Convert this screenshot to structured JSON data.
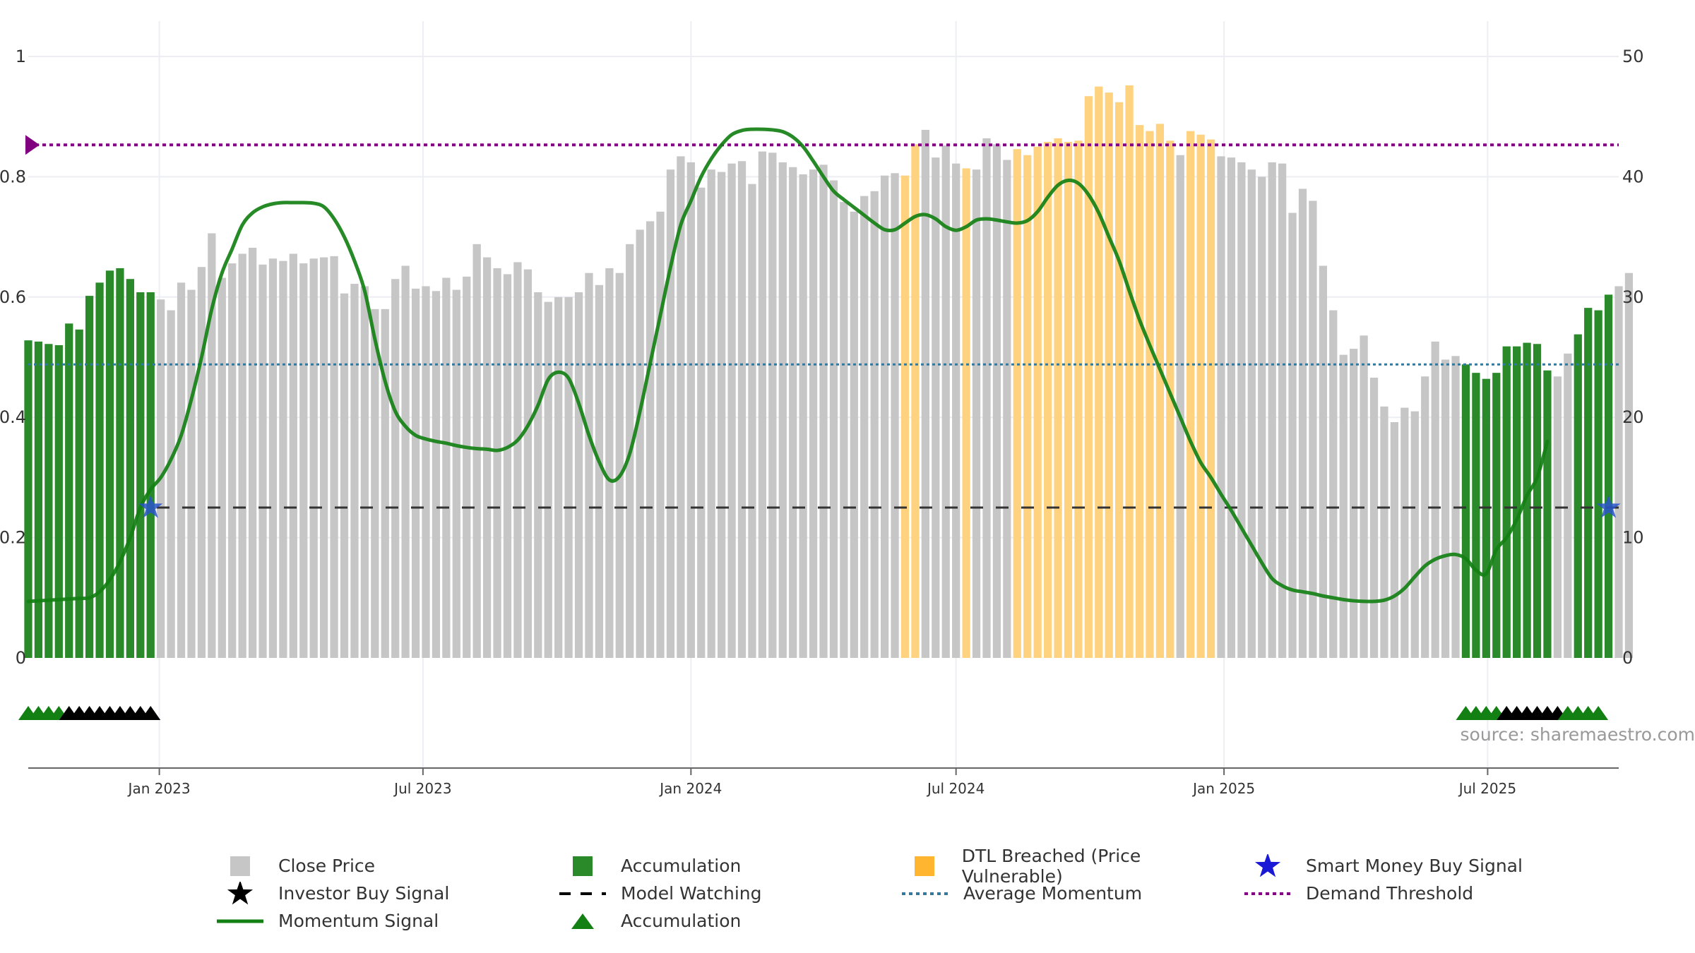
{
  "chart_data": {
    "type": "bar",
    "title": "",
    "source": "source: sharemaestro.com",
    "x_ticks": [
      "Jan 2023",
      "Jul 2023",
      "Jan 2024",
      "Jul 2024",
      "Jan 2025",
      "Jul 2025"
    ],
    "x_range": [
      "2022-10-03",
      "2025-09-29"
    ],
    "y_left": {
      "range": [
        0,
        1
      ],
      "ticks": [
        0,
        0.2,
        0.4,
        0.6,
        0.8,
        1
      ],
      "tick_labels": [
        "0",
        "0.2",
        "0.4",
        "0.6",
        "0.8",
        "1"
      ]
    },
    "y_right": {
      "range": [
        0,
        50
      ],
      "ticks": [
        0,
        10,
        20,
        30,
        40,
        50
      ],
      "tick_labels": [
        "0",
        "10",
        "20",
        "30",
        "40",
        "50"
      ]
    },
    "grid": true,
    "legend_placement": "bottom",
    "colors": {
      "close": "#c6c6c6",
      "accumulation": "#2a8a2a",
      "dtl": "#ffd27f",
      "momentum": "#138013",
      "demand": "#800080",
      "average": "#2e7aa0",
      "watch": "#333333",
      "smart_money": "#2a54c9"
    },
    "series": [
      {
        "name": "Close Price",
        "axis": "right",
        "start_date": "2022-10-03",
        "interval_days": 7,
        "values": [
          26.4,
          26.3,
          26.1,
          26.0,
          27.8,
          27.3,
          30.1,
          31.2,
          32.2,
          32.4,
          31.5,
          30.4,
          30.4,
          29.8,
          28.9,
          31.2,
          30.6,
          32.5,
          35.3,
          31.6,
          32.8,
          33.6,
          34.1,
          32.7,
          33.2,
          33.0,
          33.6,
          32.8,
          33.2,
          33.3,
          33.4,
          30.3,
          31.1,
          30.9,
          29.0,
          29.0,
          31.5,
          32.6,
          30.7,
          30.9,
          30.5,
          31.6,
          30.6,
          31.7,
          34.4,
          33.3,
          32.4,
          31.9,
          32.9,
          32.3,
          30.4,
          29.6,
          30.0,
          30.0,
          30.4,
          32.0,
          31.0,
          32.4,
          32.0,
          34.4,
          35.6,
          36.3,
          37.1,
          40.6,
          41.7,
          41.2,
          39.1,
          40.6,
          40.4,
          41.1,
          41.3,
          39.4,
          42.1,
          42.0,
          41.2,
          40.8,
          40.2,
          40.6,
          41.0,
          39.7,
          37.9,
          37.1,
          38.4,
          38.8,
          40.1,
          40.3,
          40.1,
          42.7,
          43.9,
          41.6,
          42.6,
          41.1,
          40.7,
          40.6,
          43.2,
          42.7,
          41.4,
          42.3,
          41.8,
          42.5,
          42.9,
          43.2,
          42.9,
          43.0,
          46.7,
          47.5,
          47.0,
          46.2,
          47.6,
          44.3,
          43.8,
          44.4,
          43.0,
          41.8,
          43.8,
          43.5,
          43.1,
          41.7,
          41.6,
          41.2,
          40.6,
          40.0,
          41.2,
          41.1,
          37.0,
          39.0,
          38.0,
          32.6,
          28.9,
          25.2,
          25.7,
          26.8,
          23.3,
          20.9,
          19.6,
          20.8,
          20.5,
          23.4,
          26.3,
          24.8,
          25.1,
          24.4,
          23.7,
          23.2,
          23.7,
          25.9,
          25.9,
          26.2,
          26.1,
          23.9,
          23.4,
          25.3,
          26.9,
          29.1,
          28.9,
          30.2,
          30.9,
          32.0
        ]
      },
      {
        "name": "Momentum Signal",
        "axis": "left",
        "values": [
          0.094,
          0.095,
          0.096,
          0.097,
          0.098,
          0.099,
          0.1,
          0.11,
          0.13,
          0.16,
          0.2,
          0.25,
          0.28,
          0.3,
          0.33,
          0.37,
          0.43,
          0.5,
          0.58,
          0.64,
          0.68,
          0.72,
          0.74,
          0.75,
          0.755,
          0.757,
          0.757,
          0.757,
          0.756,
          0.75,
          0.73,
          0.7,
          0.66,
          0.61,
          0.53,
          0.46,
          0.41,
          0.385,
          0.37,
          0.364,
          0.36,
          0.357,
          0.353,
          0.35,
          0.348,
          0.347,
          0.345,
          0.35,
          0.362,
          0.386,
          0.42,
          0.463,
          0.475,
          0.465,
          0.423,
          0.37,
          0.326,
          0.296,
          0.302,
          0.34,
          0.41,
          0.49,
          0.57,
          0.65,
          0.72,
          0.76,
          0.8,
          0.83,
          0.853,
          0.87,
          0.877,
          0.879,
          0.879,
          0.878,
          0.875,
          0.866,
          0.85,
          0.826,
          0.8,
          0.776,
          0.762,
          0.749,
          0.736,
          0.723,
          0.712,
          0.712,
          0.723,
          0.734,
          0.737,
          0.73,
          0.717,
          0.711,
          0.717,
          0.728,
          0.73,
          0.728,
          0.725,
          0.723,
          0.727,
          0.742,
          0.766,
          0.786,
          0.794,
          0.789,
          0.77,
          0.74,
          0.7,
          0.66,
          0.61,
          0.562,
          0.52,
          0.48,
          0.44,
          0.4,
          0.36,
          0.325,
          0.3,
          0.272,
          0.245,
          0.216,
          0.187,
          0.158,
          0.132,
          0.12,
          0.113,
          0.11,
          0.107,
          0.103,
          0.1,
          0.097,
          0.095,
          0.094,
          0.094,
          0.096,
          0.103,
          0.116,
          0.135,
          0.153,
          0.164,
          0.17,
          0.172,
          0.165,
          0.146,
          0.14,
          0.18,
          0.2,
          0.23,
          0.27,
          0.3,
          0.36
        ]
      }
    ],
    "accumulation_ranges": [
      [
        0,
        12
      ],
      [
        141,
        149
      ],
      [
        152,
        155
      ]
    ],
    "dtl_ranges": [
      [
        86,
        87
      ],
      [
        92,
        92
      ],
      [
        97,
        112
      ],
      [
        114,
        116
      ]
    ],
    "demand_threshold": 0.853,
    "average_momentum": 0.488,
    "model_watching": 0.25,
    "smart_money_buy_signals": [
      {
        "x": "2022-12-26",
        "y": 0.25
      },
      {
        "x": "2025-09-22",
        "y": 0.25
      }
    ],
    "markers": [
      {
        "type": "Accumulation",
        "indices": [
          0,
          1,
          2,
          3
        ]
      },
      {
        "type": "Investor Buy Signal",
        "indices": [
          4,
          5,
          6,
          7,
          8,
          9,
          10,
          11,
          12
        ]
      },
      {
        "type": "Accumulation",
        "indices": [
          141,
          142,
          143,
          144
        ]
      },
      {
        "type": "Investor Buy Signal",
        "indices": [
          145,
          146,
          147,
          148,
          149,
          150
        ]
      },
      {
        "type": "Accumulation",
        "indices": [
          151,
          152,
          153,
          154
        ]
      }
    ],
    "legend": [
      {
        "name": "Close Price",
        "symbol": "square",
        "color": "#c6c6c6"
      },
      {
        "name": "Accumulation",
        "symbol": "square",
        "color": "#2a8a2a"
      },
      {
        "name": "DTL Breached (Price Vulnerable)",
        "symbol": "square",
        "color": "#ffb530"
      },
      {
        "name": "Smart Money Buy Signal",
        "symbol": "star",
        "color": "#1a1ad6"
      },
      {
        "name": "Investor Buy Signal",
        "symbol": "star",
        "color": "#000000"
      },
      {
        "name": "Model Watching",
        "symbol": "dash",
        "color": "#000000"
      },
      {
        "name": "Average Momentum",
        "symbol": "dot",
        "color": "#2e7aa0"
      },
      {
        "name": "Demand Threshold",
        "symbol": "dot",
        "color": "#800080"
      },
      {
        "name": "Momentum Signal",
        "symbol": "line",
        "color": "#138013"
      },
      {
        "name": "Accumulation",
        "symbol": "triangle",
        "color": "#138013"
      }
    ]
  }
}
